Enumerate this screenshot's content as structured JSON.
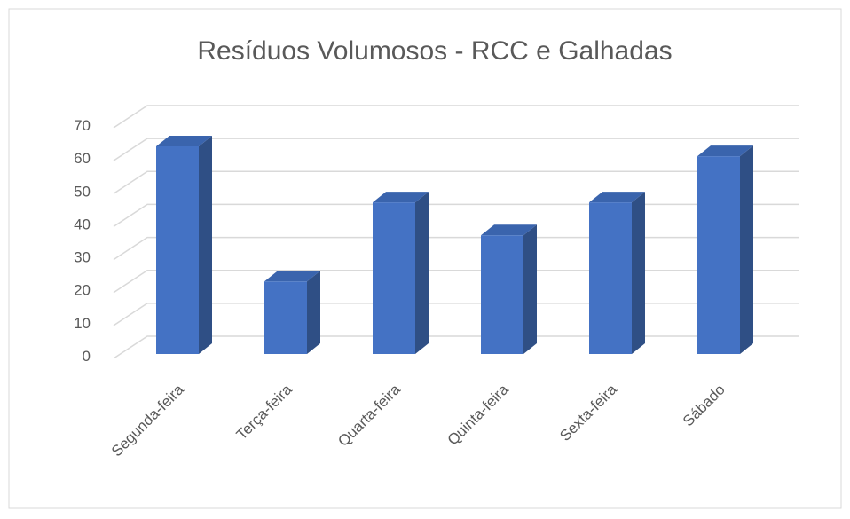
{
  "chart_data": {
    "type": "bar",
    "title": "Resíduos Volumosos - RCC e Galhadas",
    "categories": [
      "Segunda-feira",
      "Terça-feira",
      "Quarta-feira",
      "Quinta-feira",
      "Sexta-feira",
      "Sábado"
    ],
    "values": [
      63,
      22,
      46,
      36,
      46,
      60
    ],
    "color": "#4472c4",
    "ylim": [
      0,
      70
    ],
    "yticks": [
      0,
      10,
      20,
      30,
      40,
      50,
      60,
      70
    ],
    "grid": true
  }
}
